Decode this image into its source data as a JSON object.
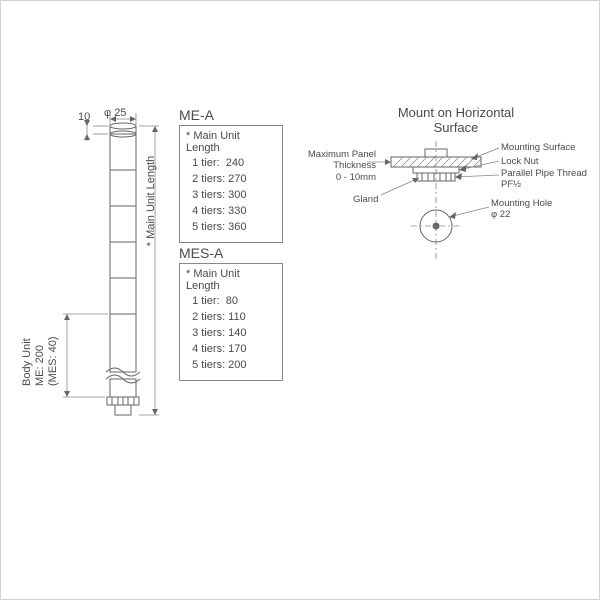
{
  "dims": {
    "top_gap": "10",
    "diameter": "φ 25",
    "body_unit_line1": "Body Unit",
    "body_unit_line2": "ME: 200",
    "body_unit_line3": "(MES: 40)",
    "main_unit_label": "* Main Unit Length"
  },
  "meA": {
    "name": "ME-A",
    "header": "* Main Unit Length",
    "rows": [
      [
        "1 tier:",
        "240"
      ],
      [
        "2 tiers:",
        "270"
      ],
      [
        "3 tiers:",
        "300"
      ],
      [
        "4 tiers:",
        "330"
      ],
      [
        "5 tiers:",
        "360"
      ]
    ]
  },
  "mesA": {
    "name": "MES-A",
    "header": "* Main Unit Length",
    "rows": [
      [
        "1 tier:",
        "80"
      ],
      [
        "2 tiers:",
        "110"
      ],
      [
        "3 tiers:",
        "140"
      ],
      [
        "4 tiers:",
        "170"
      ],
      [
        "5 tiers:",
        "200"
      ]
    ]
  },
  "mount": {
    "title1": "Mount on Horizontal",
    "title2": "Surface",
    "panel_thick_l1": "Maximum Panel",
    "panel_thick_l2": "Thickness",
    "panel_thick_l3": "0 - 10mm",
    "gland": "Gland",
    "mounting_surface": "Mounting Surface",
    "lock_nut": "Lock Nut",
    "pipe_thread_l1": "Parallel Pipe Thread",
    "pipe_thread_l2": "PF½",
    "mounting_hole_l1": "Mounting Hole",
    "mounting_hole_l2": "φ 22"
  },
  "style": {
    "stroke": "#666666",
    "thin": "#888888",
    "textcolor": "#4a4a4a",
    "bg": "#ffffff",
    "hatch": "#888888"
  }
}
